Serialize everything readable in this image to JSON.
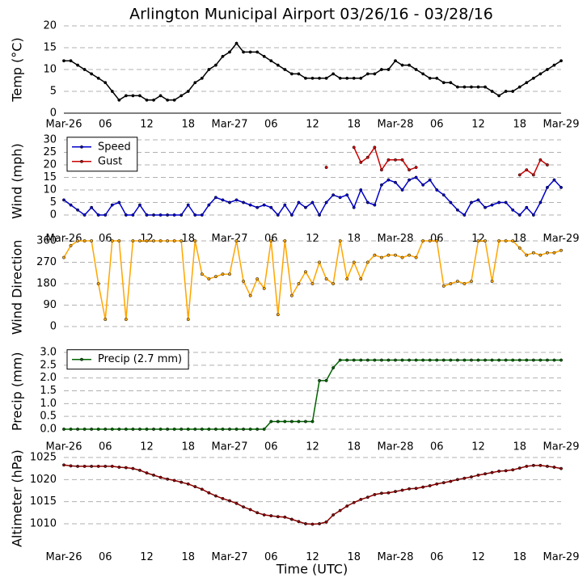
{
  "title": "Arlington Municipal Airport 03/26/16 - 03/28/16",
  "xlabel": "Time (UTC)",
  "chart_data": [
    {
      "type": "line",
      "ylabel": "Temp (°C)",
      "xlim": [
        0,
        72
      ],
      "ylim": [
        0,
        20
      ],
      "yticks": [
        0,
        5,
        10,
        15,
        20
      ],
      "xticks": [
        {
          "value": 0,
          "label": "Mar-26"
        },
        {
          "value": 6,
          "label": "06"
        },
        {
          "value": 12,
          "label": "12"
        },
        {
          "value": 18,
          "label": "18"
        },
        {
          "value": 24,
          "label": "Mar-27"
        },
        {
          "value": 30,
          "label": "06"
        },
        {
          "value": 36,
          "label": "12"
        },
        {
          "value": 42,
          "label": "18"
        },
        {
          "value": 48,
          "label": "Mar-28"
        },
        {
          "value": 54,
          "label": "06"
        },
        {
          "value": 60,
          "label": "12"
        },
        {
          "value": 66,
          "label": "18"
        },
        {
          "value": 72,
          "label": "Mar-29"
        }
      ],
      "x": [
        0,
        1,
        2,
        3,
        4,
        5,
        6,
        7,
        8,
        9,
        10,
        11,
        12,
        13,
        14,
        15,
        16,
        17,
        18,
        19,
        20,
        21,
        22,
        23,
        24,
        25,
        26,
        27,
        28,
        29,
        30,
        31,
        32,
        33,
        34,
        35,
        36,
        37,
        38,
        39,
        40,
        41,
        42,
        43,
        44,
        45,
        46,
        47,
        48,
        49,
        50,
        51,
        52,
        53,
        54,
        55,
        56,
        57,
        58,
        59,
        60,
        61,
        62,
        63,
        64,
        65,
        66,
        67,
        68,
        69,
        70,
        71,
        72
      ],
      "series": [
        {
          "color": "#000000",
          "values": [
            12,
            12,
            11,
            10,
            9,
            8,
            7,
            5,
            3,
            4,
            4,
            4,
            3,
            3,
            4,
            3,
            3,
            4,
            5,
            7,
            8,
            10,
            11,
            13,
            14,
            16,
            14,
            14,
            14,
            13,
            12,
            11,
            10,
            9,
            9,
            8,
            8,
            8,
            8,
            9,
            8,
            8,
            8,
            8,
            9,
            9,
            10,
            10,
            12,
            11,
            11,
            10,
            9,
            8,
            8,
            7,
            7,
            6,
            6,
            6,
            6,
            6,
            5,
            4,
            5,
            5,
            6,
            7,
            8,
            9,
            10,
            11,
            12
          ]
        }
      ]
    },
    {
      "type": "line",
      "ylabel": "Wind (mph)",
      "xlim": [
        0,
        72
      ],
      "ylim": [
        -5,
        32
      ],
      "yticks": [
        0,
        5,
        10,
        15,
        20,
        25,
        30
      ],
      "legend": "upper left",
      "xticks": [
        {
          "value": 0,
          "label": "Mar-26"
        },
        {
          "value": 6,
          "label": "06"
        },
        {
          "value": 12,
          "label": "12"
        },
        {
          "value": 18,
          "label": "18"
        },
        {
          "value": 24,
          "label": "Mar-27"
        },
        {
          "value": 30,
          "label": "06"
        },
        {
          "value": 36,
          "label": "12"
        },
        {
          "value": 42,
          "label": "18"
        },
        {
          "value": 48,
          "label": "Mar-28"
        },
        {
          "value": 54,
          "label": "06"
        },
        {
          "value": 60,
          "label": "12"
        },
        {
          "value": 66,
          "label": "18"
        },
        {
          "value": 72,
          "label": "Mar-29"
        }
      ],
      "x": [
        0,
        1,
        2,
        3,
        4,
        5,
        6,
        7,
        8,
        9,
        10,
        11,
        12,
        13,
        14,
        15,
        16,
        17,
        18,
        19,
        20,
        21,
        22,
        23,
        24,
        25,
        26,
        27,
        28,
        29,
        30,
        31,
        32,
        33,
        34,
        35,
        36,
        37,
        38,
        39,
        40,
        41,
        42,
        43,
        44,
        45,
        46,
        47,
        48,
        49,
        50,
        51,
        52,
        53,
        54,
        55,
        56,
        57,
        58,
        59,
        60,
        61,
        62,
        63,
        64,
        65,
        66,
        67,
        68,
        69,
        70,
        71,
        72
      ],
      "series": [
        {
          "name": "Speed",
          "color": "#0000cc",
          "values": [
            6,
            4,
            2,
            0,
            3,
            0,
            0,
            4,
            5,
            0,
            0,
            4,
            0,
            0,
            0,
            0,
            0,
            0,
            4,
            0,
            0,
            4,
            7,
            6,
            5,
            6,
            5,
            4,
            3,
            4,
            3,
            0,
            4,
            0,
            5,
            3,
            5,
            0,
            5,
            8,
            7,
            8,
            3,
            10,
            5,
            4,
            12,
            14,
            13,
            10,
            14,
            15,
            12,
            14,
            10,
            8,
            5,
            2,
            0,
            5,
            6,
            3,
            4,
            5,
            5,
            2,
            0,
            3,
            0,
            5,
            11,
            14,
            11
          ]
        },
        {
          "name": "Gust",
          "color": "#cc0000",
          "values": [
            null,
            null,
            null,
            null,
            null,
            null,
            null,
            null,
            null,
            null,
            null,
            null,
            null,
            null,
            null,
            null,
            null,
            null,
            null,
            null,
            null,
            null,
            null,
            null,
            null,
            null,
            null,
            null,
            null,
            null,
            null,
            null,
            null,
            null,
            null,
            null,
            null,
            null,
            19,
            null,
            null,
            null,
            27,
            21,
            23,
            27,
            18,
            22,
            22,
            22,
            18,
            19,
            null,
            null,
            null,
            null,
            null,
            null,
            null,
            null,
            null,
            null,
            null,
            null,
            null,
            null,
            16,
            18,
            16,
            22,
            20,
            null,
            null
          ]
        }
      ]
    },
    {
      "type": "line",
      "ylabel": "Wind Direction",
      "xlim": [
        0,
        72
      ],
      "ylim": [
        -50,
        380
      ],
      "yticks": [
        0,
        90,
        180,
        270,
        360
      ],
      "x": [
        0,
        1,
        2,
        3,
        4,
        5,
        6,
        7,
        8,
        9,
        10,
        11,
        12,
        13,
        14,
        15,
        16,
        17,
        18,
        19,
        20,
        21,
        22,
        23,
        24,
        25,
        26,
        27,
        28,
        29,
        30,
        31,
        32,
        33,
        34,
        35,
        36,
        37,
        38,
        39,
        40,
        41,
        42,
        43,
        44,
        45,
        46,
        47,
        48,
        49,
        50,
        51,
        52,
        53,
        54,
        55,
        56,
        57,
        58,
        59,
        60,
        61,
        62,
        63,
        64,
        65,
        66,
        67,
        68,
        69,
        70,
        71,
        72
      ],
      "series": [
        {
          "color": "#ffa500",
          "values": [
            290,
            340,
            360,
            360,
            360,
            180,
            30,
            360,
            360,
            30,
            360,
            360,
            360,
            360,
            360,
            360,
            360,
            360,
            30,
            360,
            220,
            200,
            210,
            220,
            220,
            360,
            190,
            130,
            200,
            160,
            360,
            50,
            360,
            130,
            180,
            230,
            180,
            270,
            200,
            180,
            360,
            200,
            270,
            200,
            270,
            300,
            290,
            300,
            300,
            290,
            300,
            290,
            360,
            360,
            360,
            170,
            180,
            190,
            180,
            190,
            360,
            360,
            190,
            360,
            360,
            360,
            330,
            300,
            310,
            300,
            310,
            310,
            320
          ]
        }
      ]
    },
    {
      "type": "line",
      "ylabel": "Precip (mm)",
      "xlim": [
        0,
        72
      ],
      "ylim": [
        -0.25,
        3.2
      ],
      "legend": "upper left",
      "yticks": [
        {
          "value": 0,
          "label": "0.0"
        },
        {
          "value": 0.5,
          "label": "0.5"
        },
        {
          "value": 1,
          "label": "1.0"
        },
        {
          "value": 1.5,
          "label": "1.5"
        },
        {
          "value": 2,
          "label": "2.0"
        },
        {
          "value": 2.5,
          "label": "2.5"
        },
        {
          "value": 3,
          "label": "3.0"
        }
      ],
      "xticks": [
        {
          "value": 0,
          "label": "Mar-26"
        },
        {
          "value": 6,
          "label": "06"
        },
        {
          "value": 12,
          "label": "12"
        },
        {
          "value": 18,
          "label": "18"
        },
        {
          "value": 24,
          "label": "Mar-27"
        },
        {
          "value": 30,
          "label": "06"
        },
        {
          "value": 36,
          "label": "12"
        },
        {
          "value": 42,
          "label": "18"
        },
        {
          "value": 48,
          "label": "Mar-28"
        },
        {
          "value": 54,
          "label": "06"
        },
        {
          "value": 60,
          "label": "12"
        },
        {
          "value": 66,
          "label": "18"
        },
        {
          "value": 72,
          "label": "Mar-29"
        }
      ],
      "x": [
        0,
        1,
        2,
        3,
        4,
        5,
        6,
        7,
        8,
        9,
        10,
        11,
        12,
        13,
        14,
        15,
        16,
        17,
        18,
        19,
        20,
        21,
        22,
        23,
        24,
        25,
        26,
        27,
        28,
        29,
        30,
        31,
        32,
        33,
        34,
        35,
        36,
        37,
        38,
        39,
        40,
        41,
        42,
        43,
        44,
        45,
        46,
        47,
        48,
        49,
        50,
        51,
        52,
        53,
        54,
        55,
        56,
        57,
        58,
        59,
        60,
        61,
        62,
        63,
        64,
        65,
        66,
        67,
        68,
        69,
        70,
        71,
        72
      ],
      "series": [
        {
          "name": "Precip (2.7 mm)",
          "color": "#006400",
          "values": [
            0,
            0,
            0,
            0,
            0,
            0,
            0,
            0,
            0,
            0,
            0,
            0,
            0,
            0,
            0,
            0,
            0,
            0,
            0,
            0,
            0,
            0,
            0,
            0,
            0,
            0,
            0,
            0,
            0,
            0,
            0.3,
            0.3,
            0.3,
            0.3,
            0.3,
            0.3,
            0.3,
            1.9,
            1.9,
            2.4,
            2.7,
            2.7,
            2.7,
            2.7,
            2.7,
            2.7,
            2.7,
            2.7,
            2.7,
            2.7,
            2.7,
            2.7,
            2.7,
            2.7,
            2.7,
            2.7,
            2.7,
            2.7,
            2.7,
            2.7,
            2.7,
            2.7,
            2.7,
            2.7,
            2.7,
            2.7,
            2.7,
            2.7,
            2.7,
            2.7,
            2.7,
            2.7,
            2.7
          ]
        }
      ]
    },
    {
      "type": "line",
      "ylabel": "Altimeter (hPa)",
      "xlim": [
        0,
        72
      ],
      "ylim": [
        1005,
        1026.5
      ],
      "yticks": [
        1010,
        1015,
        1020,
        1025
      ],
      "xticks": [
        {
          "value": 0,
          "label": "Mar-26"
        },
        {
          "value": 6,
          "label": "06"
        },
        {
          "value": 12,
          "label": "12"
        },
        {
          "value": 18,
          "label": "18"
        },
        {
          "value": 24,
          "label": "Mar-27"
        },
        {
          "value": 30,
          "label": "06"
        },
        {
          "value": 36,
          "label": "12"
        },
        {
          "value": 42,
          "label": "18"
        },
        {
          "value": 48,
          "label": "Mar-28"
        },
        {
          "value": 54,
          "label": "06"
        },
        {
          "value": 60,
          "label": "12"
        },
        {
          "value": 66,
          "label": "18"
        },
        {
          "value": 72,
          "label": "Mar-29"
        }
      ],
      "x": [
        0,
        1,
        2,
        3,
        4,
        5,
        6,
        7,
        8,
        9,
        10,
        11,
        12,
        13,
        14,
        15,
        16,
        17,
        18,
        19,
        20,
        21,
        22,
        23,
        24,
        25,
        26,
        27,
        28,
        29,
        30,
        31,
        32,
        33,
        34,
        35,
        36,
        37,
        38,
        39,
        40,
        41,
        42,
        43,
        44,
        45,
        46,
        47,
        48,
        49,
        50,
        51,
        52,
        53,
        54,
        55,
        56,
        57,
        58,
        59,
        60,
        61,
        62,
        63,
        64,
        65,
        66,
        67,
        68,
        69,
        70,
        71,
        72
      ],
      "series": [
        {
          "color": "#8b0000",
          "values": [
            1023.3,
            1023.1,
            1023,
            1023,
            1023,
            1023,
            1023,
            1023,
            1022.8,
            1022.7,
            1022.5,
            1022.1,
            1021.5,
            1021,
            1020.5,
            1020.1,
            1019.8,
            1019.4,
            1019,
            1018.4,
            1017.8,
            1017,
            1016.3,
            1015.7,
            1015.2,
            1014.6,
            1013.8,
            1013.2,
            1012.5,
            1012,
            1011.8,
            1011.6,
            1011.5,
            1011,
            1010.5,
            1010,
            1009.9,
            1010,
            1010.4,
            1012,
            1013,
            1014,
            1014.8,
            1015.5,
            1016,
            1016.6,
            1016.9,
            1017,
            1017.3,
            1017.6,
            1017.9,
            1018,
            1018.3,
            1018.6,
            1019,
            1019.3,
            1019.6,
            1020,
            1020.3,
            1020.6,
            1021,
            1021.3,
            1021.6,
            1021.9,
            1022,
            1022.2,
            1022.6,
            1023,
            1023.2,
            1023.2,
            1023,
            1022.8,
            1022.5
          ]
        }
      ]
    }
  ]
}
